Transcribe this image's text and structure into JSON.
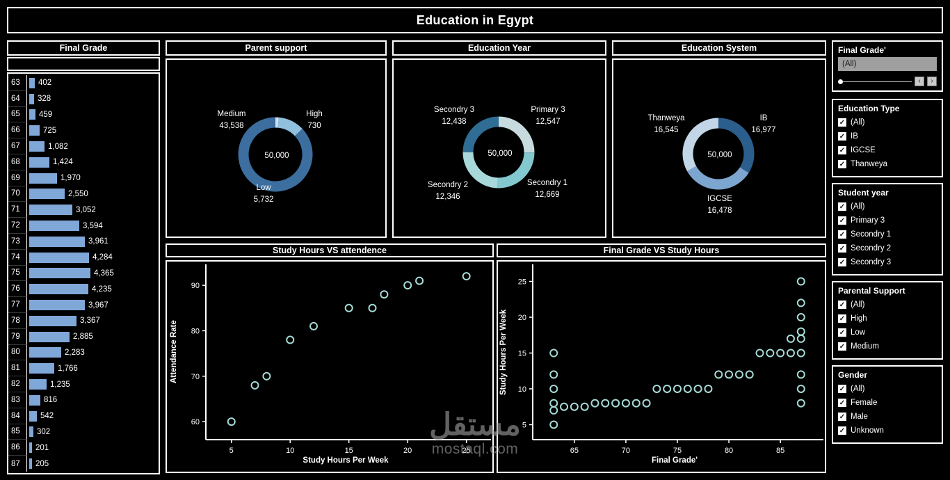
{
  "title": "Education in Egypt",
  "watermark": {
    "logo_text": "مستقل",
    "site_text": "mostaql.com"
  },
  "chart_data": [
    {
      "id": "final_grade",
      "type": "bar",
      "title": "Final Grade",
      "orientation": "horizontal",
      "bar_color": "#7fa8d8",
      "categories": [
        "63",
        "64",
        "65",
        "66",
        "67",
        "68",
        "69",
        "70",
        "71",
        "72",
        "73",
        "74",
        "75",
        "76",
        "77",
        "78",
        "79",
        "80",
        "81",
        "82",
        "83",
        "84",
        "85",
        "86",
        "87"
      ],
      "values": [
        402,
        328,
        459,
        725,
        1082,
        1424,
        1970,
        2550,
        3052,
        3594,
        3961,
        4284,
        4365,
        4235,
        3967,
        3367,
        2885,
        2283,
        1766,
        1235,
        816,
        542,
        302,
        201,
        205
      ],
      "value_labels": [
        "402",
        "328",
        "459",
        "725",
        "1,082",
        "1,424",
        "1,970",
        "2,550",
        "3,052",
        "3,594",
        "3,961",
        "4,284",
        "4,365",
        "4,235",
        "3,967",
        "3,367",
        "2,885",
        "2,283",
        "1,766",
        "1,235",
        "816",
        "542",
        "302",
        "201",
        "205"
      ]
    },
    {
      "id": "parent_support",
      "type": "pie",
      "title": "Parent support",
      "center_label": "50,000",
      "slices": [
        {
          "label": "High",
          "value": 730,
          "value_label": "730",
          "color": "#cde1f2"
        },
        {
          "label": "Low",
          "value": 5732,
          "value_label": "5,732",
          "color": "#8fc0dd"
        },
        {
          "label": "Medium",
          "value": 43538,
          "value_label": "43,538",
          "color": "#3c6e9f"
        }
      ]
    },
    {
      "id": "education_year",
      "type": "pie",
      "title": "Education Year",
      "center_label": "50,000",
      "slices": [
        {
          "label": "Primary 3",
          "value": 12547,
          "value_label": "12,547",
          "color": "#c7dbdf"
        },
        {
          "label": "Secondry 1",
          "value": 12669,
          "value_label": "12,669",
          "color": "#83c7cf"
        },
        {
          "label": "Secondry 2",
          "value": 12346,
          "value_label": "12,346",
          "color": "#a8d8da"
        },
        {
          "label": "Secondry 3",
          "value": 12438,
          "value_label": "12,438",
          "color": "#2f6d94"
        }
      ]
    },
    {
      "id": "education_system",
      "type": "pie",
      "title": "Education System",
      "center_label": "50,000",
      "slices": [
        {
          "label": "IB",
          "value": 16977,
          "value_label": "16,977",
          "color": "#2c5e8d"
        },
        {
          "label": "IGCSE",
          "value": 16478,
          "value_label": "16,478",
          "color": "#7ca6cf"
        },
        {
          "label": "Thanweya",
          "value": 16545,
          "value_label": "16,545",
          "color": "#c2d6e8"
        }
      ]
    },
    {
      "id": "study_attendance",
      "type": "scatter",
      "title": "Study Hours VS attendence",
      "xlabel": "Study Hours Per Week",
      "ylabel": "Attendance Rate",
      "xlim": [
        3.3,
        26.5
      ],
      "ylim": [
        56.5,
        94
      ],
      "xticks": [
        5,
        10,
        15,
        20,
        25
      ],
      "yticks": [
        60,
        70,
        80,
        90
      ],
      "point_color": "#a6dbd7",
      "points": [
        [
          5,
          60
        ],
        [
          7,
          68
        ],
        [
          8,
          70
        ],
        [
          10,
          78
        ],
        [
          12,
          81
        ],
        [
          15,
          85
        ],
        [
          17,
          85
        ],
        [
          18,
          88
        ],
        [
          20,
          90
        ],
        [
          21,
          91
        ],
        [
          25,
          92
        ]
      ]
    },
    {
      "id": "grade_study",
      "type": "scatter",
      "title": "Final Grade VS Study Hours",
      "xlabel": "Final Grade'",
      "ylabel": "Study Hours Per Week",
      "xlim": [
        61.5,
        88.5
      ],
      "ylim": [
        3.2,
        26.8
      ],
      "xticks": [
        65,
        70,
        75,
        80,
        85
      ],
      "yticks": [
        5,
        10,
        15,
        20,
        25
      ],
      "point_color": "#a6dbd7",
      "points": [
        [
          63,
          5
        ],
        [
          63,
          7
        ],
        [
          63,
          8
        ],
        [
          63,
          10
        ],
        [
          63,
          12
        ],
        [
          63,
          15
        ],
        [
          64,
          7.5
        ],
        [
          65,
          7.5
        ],
        [
          66,
          7.5
        ],
        [
          67,
          8
        ],
        [
          68,
          8
        ],
        [
          69,
          8
        ],
        [
          70,
          8
        ],
        [
          71,
          8
        ],
        [
          72,
          8
        ],
        [
          73,
          10
        ],
        [
          74,
          10
        ],
        [
          75,
          10
        ],
        [
          76,
          10
        ],
        [
          77,
          10
        ],
        [
          78,
          10
        ],
        [
          79,
          12
        ],
        [
          80,
          12
        ],
        [
          81,
          12
        ],
        [
          82,
          12
        ],
        [
          83,
          15
        ],
        [
          84,
          15
        ],
        [
          85,
          15
        ],
        [
          86,
          15
        ],
        [
          86,
          17
        ],
        [
          87,
          8
        ],
        [
          87,
          10
        ],
        [
          87,
          12
        ],
        [
          87,
          15
        ],
        [
          87,
          17
        ],
        [
          87,
          18
        ],
        [
          87,
          20
        ],
        [
          87,
          22
        ],
        [
          87,
          25
        ]
      ]
    }
  ],
  "filters": [
    {
      "id": "final_grade_filter",
      "title": "Final Grade'",
      "type": "dropdown_slider",
      "dropdown_value": "(All)"
    },
    {
      "id": "education_type",
      "title": "Education Type",
      "type": "checkbox_list",
      "options": [
        {
          "label": "(All)",
          "checked": true
        },
        {
          "label": "IB",
          "checked": true
        },
        {
          "label": "IGCSE",
          "checked": true
        },
        {
          "label": "Thanweya",
          "checked": true
        }
      ]
    },
    {
      "id": "student_year",
      "title": "Student year",
      "type": "checkbox_list",
      "options": [
        {
          "label": "(All)",
          "checked": true
        },
        {
          "label": "Primary 3",
          "checked": true
        },
        {
          "label": "Secondry 1",
          "checked": true
        },
        {
          "label": "Secondry 2",
          "checked": true
        },
        {
          "label": "Secondry 3",
          "checked": true
        }
      ]
    },
    {
      "id": "parental_support",
      "title": "Parental Support",
      "type": "checkbox_list",
      "options": [
        {
          "label": "(All)",
          "checked": true
        },
        {
          "label": "High",
          "checked": true
        },
        {
          "label": "Low",
          "checked": true
        },
        {
          "label": "Medium",
          "checked": true
        }
      ]
    },
    {
      "id": "gender",
      "title": "Gender",
      "type": "checkbox_list",
      "options": [
        {
          "label": "(All)",
          "checked": true
        },
        {
          "label": "Female",
          "checked": true
        },
        {
          "label": "Male",
          "checked": true
        },
        {
          "label": "Unknown",
          "checked": true
        }
      ]
    }
  ]
}
